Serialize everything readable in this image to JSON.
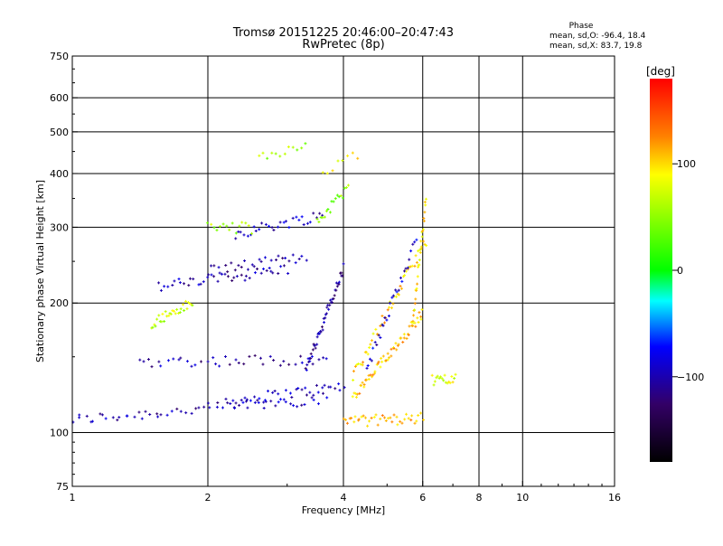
{
  "chart_data": {
    "type": "scatter",
    "title": "Tromsø 20151225 20:46:00–20:47:43",
    "subtitle": "RwPretec (8p)",
    "xlabel": "Frequency [MHz]",
    "ylabel": "Stationary phase Virtual Height [km]",
    "x_scale": "log",
    "y_scale": "log",
    "xlim": [
      1,
      16
    ],
    "ylim": [
      75,
      750
    ],
    "x_ticks": [
      1,
      2,
      4,
      6,
      8,
      10,
      16
    ],
    "y_ticks": [
      75,
      100,
      200,
      300,
      400,
      500,
      600,
      750
    ],
    "x_gridlines": [
      2,
      4,
      6,
      8,
      10
    ],
    "y_gridlines": [
      100,
      200,
      300,
      400,
      500,
      600
    ],
    "grid": true,
    "phase_stats": {
      "heading": "Phase",
      "line1": "mean, sd,O: -96.4, 18.4",
      "line2": "mean, sd,X: 83.7, 19.8"
    },
    "colorbar": {
      "unit": "[deg]",
      "range": [
        -180,
        180
      ],
      "ticks": [
        100,
        0,
        -100
      ],
      "tick_labels": [
        "100",
        "0",
        "−100"
      ],
      "colors": [
        "#ff0000",
        "#ff8000",
        "#ffff00",
        "#00ff00",
        "#00ffff",
        "#0000ff",
        "#330066",
        "#000000"
      ]
    },
    "traces": [
      {
        "name": "",
        "x_range": [
          1.0,
          3.7
        ],
        "y_start": 107,
        "y_end": 120,
        "phase": -100,
        "density": 60
      },
      {
        "name": "",
        "x_range": [
          2.2,
          4.0
        ],
        "y_start": 118,
        "y_end": 128,
        "phase": -95,
        "density": 40
      },
      {
        "name": "",
        "x_range": [
          1.4,
          3.7
        ],
        "y_start": 146,
        "y_end": 148,
        "phase": -105,
        "density": 40
      },
      {
        "name": "",
        "x_range": [
          1.55,
          3.0
        ],
        "y_start": 218,
        "y_end": 240,
        "phase": -100,
        "density": 40
      },
      {
        "name": "",
        "x_range": [
          2.0,
          3.3
        ],
        "y_start": 238,
        "y_end": 255,
        "phase": -110,
        "density": 30
      },
      {
        "name": "",
        "x_range": [
          2.3,
          3.6
        ],
        "y_start": 290,
        "y_end": 320,
        "phase": -95,
        "density": 30
      },
      {
        "name": "",
        "x_range": [
          3.5,
          4.1
        ],
        "y_start": 310,
        "y_end": 370,
        "phase": 50,
        "density": 18
      },
      {
        "name": "",
        "x_range": [
          1.5,
          1.85
        ],
        "y_start": 180,
        "y_end": 200,
        "phase": 70,
        "density": 30
      },
      {
        "name": "",
        "x_range": [
          2.0,
          2.5
        ],
        "y_start": 302,
        "y_end": 298,
        "phase": 60,
        "density": 15
      },
      {
        "name": "",
        "x_range": [
          3.3,
          4.0
        ],
        "y_start": 140,
        "y_end": 240,
        "phase": -105,
        "density": 50
      },
      {
        "name": "",
        "x_range": [
          4.2,
          6.0
        ],
        "y_start": 120,
        "y_end": 190,
        "phase": 110,
        "density": 60
      },
      {
        "name": "",
        "x_range": [
          4.2,
          6.1
        ],
        "y_start": 135,
        "y_end": 280,
        "phase": 105,
        "density": 50
      },
      {
        "name": "",
        "x_range": [
          4.0,
          6.0
        ],
        "y_start": 106,
        "y_end": 108,
        "phase": 110,
        "density": 40
      },
      {
        "name": "",
        "x_range": [
          5.7,
          6.1
        ],
        "y_start": 180,
        "y_end": 350,
        "phase": 100,
        "density": 30
      },
      {
        "name": "",
        "x_range": [
          4.5,
          5.8
        ],
        "y_start": 140,
        "y_end": 280,
        "phase": -90,
        "density": 30
      },
      {
        "name": "",
        "x_range": [
          6.3,
          7.1
        ],
        "y_start": 132,
        "y_end": 135,
        "phase": 80,
        "density": 18
      },
      {
        "name": "",
        "x_range": [
          2.6,
          3.3
        ],
        "y_start": 430,
        "y_end": 470,
        "phase": 60,
        "density": 12
      },
      {
        "name": "",
        "x_range": [
          3.6,
          4.3
        ],
        "y_start": 400,
        "y_end": 440,
        "phase": 90,
        "density": 8
      }
    ]
  }
}
